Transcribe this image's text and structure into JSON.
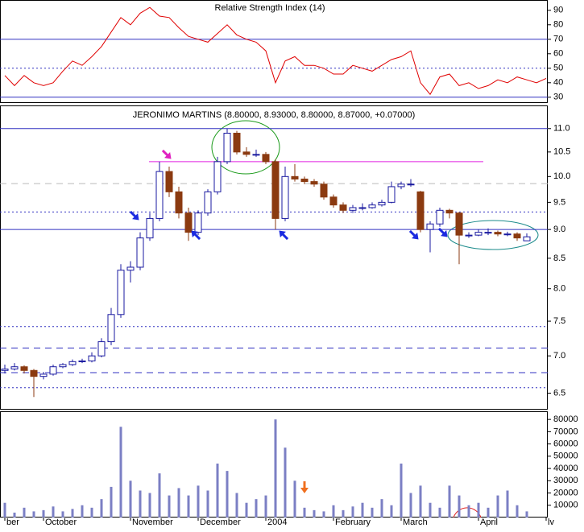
{
  "chart_data": [
    {
      "type": "line",
      "title": "Relative Strength Index (14)",
      "color": "#e00000",
      "values": [
        45,
        38,
        45,
        40,
        38,
        40,
        48,
        55,
        52,
        58,
        65,
        75,
        85,
        80,
        88,
        92,
        86,
        85,
        78,
        72,
        70,
        68,
        74,
        80,
        73,
        70,
        68,
        62,
        40,
        55,
        58,
        52,
        52,
        50,
        46,
        46,
        52,
        50,
        48,
        52,
        56,
        58,
        62,
        40,
        32,
        44,
        46,
        38,
        40,
        36,
        38,
        42,
        40,
        44,
        42,
        40,
        43
      ],
      "ylim": [
        26,
        96
      ],
      "yticks": [
        30,
        40,
        50,
        60,
        70,
        80,
        90
      ],
      "levels": [
        {
          "value": 70,
          "style": "solid"
        },
        {
          "value": 50,
          "style": "dotted"
        },
        {
          "value": 30,
          "style": "solid"
        }
      ]
    },
    {
      "type": "candlestick",
      "title": "JERONIMO MARTINS (8.80000, 8.93000, 8.80000, 8.87000, +0.07000)",
      "log_scale": true,
      "up_color": "#1a1aa0",
      "down_color": "#8b3a10",
      "open": [
        6.8,
        6.82,
        6.85,
        6.8,
        6.72,
        6.75,
        6.85,
        6.88,
        6.92,
        6.93,
        7.0,
        7.2,
        7.6,
        8.3,
        8.35,
        8.85,
        9.2,
        10.1,
        9.7,
        9.3,
        8.95,
        9.3,
        9.7,
        10.3,
        10.9,
        10.5,
        10.45,
        10.45,
        10.3,
        9.2,
        10.0,
        9.95,
        9.9,
        9.85,
        9.6,
        9.45,
        9.35,
        9.4,
        9.4,
        9.45,
        9.5,
        9.8,
        9.85,
        9.7,
        9.0,
        9.1,
        9.35,
        9.3,
        8.9,
        8.9,
        8.95,
        8.95,
        8.92,
        8.92,
        8.8,
        null,
        null
      ],
      "high": [
        6.88,
        6.9,
        6.87,
        6.82,
        6.78,
        6.88,
        6.9,
        6.95,
        6.96,
        7.05,
        7.25,
        7.7,
        8.4,
        8.45,
        8.95,
        9.3,
        10.3,
        10.2,
        9.8,
        9.4,
        9.35,
        9.75,
        10.4,
        11.0,
        10.95,
        10.6,
        10.55,
        10.5,
        10.35,
        10.2,
        10.25,
        10.0,
        9.95,
        9.9,
        9.65,
        9.5,
        9.45,
        9.48,
        9.5,
        9.55,
        9.9,
        9.9,
        9.95,
        9.72,
        9.15,
        9.4,
        9.38,
        9.32,
        8.95,
        9.0,
        9.02,
        8.98,
        8.96,
        8.95,
        8.93,
        null,
        null
      ],
      "low": [
        6.76,
        6.8,
        6.76,
        6.45,
        6.68,
        6.73,
        6.83,
        6.86,
        6.9,
        6.91,
        6.98,
        7.15,
        7.55,
        8.1,
        8.3,
        8.8,
        9.15,
        9.6,
        9.2,
        8.8,
        8.9,
        9.25,
        9.65,
        10.25,
        10.45,
        10.4,
        10.4,
        10.25,
        9.0,
        9.15,
        9.9,
        9.85,
        9.8,
        9.55,
        9.4,
        9.3,
        9.3,
        9.35,
        9.38,
        9.42,
        9.48,
        9.75,
        9.8,
        8.95,
        8.6,
        9.05,
        9.2,
        8.4,
        8.85,
        8.88,
        8.9,
        8.88,
        8.88,
        8.8,
        8.8,
        null,
        null
      ],
      "close": [
        6.82,
        6.85,
        6.8,
        6.72,
        6.75,
        6.85,
        6.88,
        6.92,
        6.93,
        7.0,
        7.2,
        7.6,
        8.3,
        8.35,
        8.85,
        9.2,
        10.1,
        9.7,
        9.3,
        8.95,
        9.3,
        9.7,
        10.3,
        10.9,
        10.5,
        10.45,
        10.45,
        10.3,
        9.2,
        10.0,
        9.95,
        9.9,
        9.85,
        9.6,
        9.45,
        9.35,
        9.4,
        9.4,
        9.45,
        9.5,
        9.8,
        9.85,
        9.85,
        9.0,
        9.1,
        9.35,
        9.3,
        8.9,
        8.9,
        8.95,
        8.95,
        8.92,
        8.92,
        8.85,
        8.87,
        null,
        null
      ],
      "ylim": [
        6.3,
        11.5
      ],
      "yticks": [
        {
          "value": 11,
          "label": "11.0"
        },
        10.5,
        {
          "value": 10,
          "label": "10.0"
        },
        9.5,
        {
          "value": 9,
          "label": "9.0"
        },
        8.5,
        {
          "value": 8,
          "label": "8.0"
        },
        7.5,
        {
          "value": 7,
          "label": "7.0"
        },
        6.5
      ],
      "levels": [
        {
          "value": 11,
          "style": "solid",
          "color": "#3030c0"
        },
        {
          "value": 10.3,
          "style": "partial",
          "color": "#e020e0"
        },
        {
          "value": 9.86,
          "style": "dashed",
          "color": "#bbbbbb"
        },
        {
          "value": 9.32,
          "style": "dotted",
          "color": "#3030c0"
        },
        {
          "value": 9,
          "style": "solid",
          "color": "#3030c0"
        },
        {
          "value": 7.42,
          "style": "dotted",
          "color": "#3030c0"
        },
        {
          "value": 7.11,
          "style": "dashed",
          "color": "#3030c0"
        },
        {
          "value": 6.77,
          "style": "dashed",
          "color": "#3030c0"
        },
        {
          "value": 6.57,
          "style": "dotted",
          "color": "#3030c0"
        }
      ]
    },
    {
      "type": "bar",
      "color": "#7b7fc4",
      "categories": [
        "ber",
        null,
        null,
        null,
        "October",
        null,
        null,
        null,
        null,
        null,
        null,
        null,
        null,
        "November",
        null,
        null,
        null,
        null,
        null,
        null,
        "December",
        null,
        null,
        null,
        null,
        null,
        null,
        "2004",
        null,
        null,
        null,
        null,
        null,
        null,
        "February",
        null,
        null,
        null,
        null,
        null,
        null,
        "March",
        null,
        null,
        null,
        null,
        null,
        null,
        null,
        "April",
        null,
        null,
        null,
        null,
        null,
        null,
        "lv"
      ],
      "values": [
        12000,
        4000,
        8000,
        5000,
        6000,
        9000,
        5000,
        7000,
        10000,
        8000,
        15000,
        25000,
        74000,
        30000,
        22000,
        20000,
        36000,
        18000,
        24000,
        18000,
        26000,
        22000,
        44000,
        38000,
        20000,
        12000,
        15000,
        18000,
        80000,
        57000,
        30000,
        8000,
        6000,
        5000,
        10000,
        6000,
        9000,
        12000,
        8000,
        15000,
        10000,
        44000,
        20000,
        26000,
        12000,
        8000,
        26000,
        18000,
        10000,
        12000,
        8000,
        18000,
        22000,
        10000,
        5000,
        null,
        null
      ],
      "ylim": [
        0,
        86000
      ],
      "yticks": [
        10000,
        20000,
        30000,
        40000,
        50000,
        60000,
        70000,
        80000
      ]
    }
  ]
}
